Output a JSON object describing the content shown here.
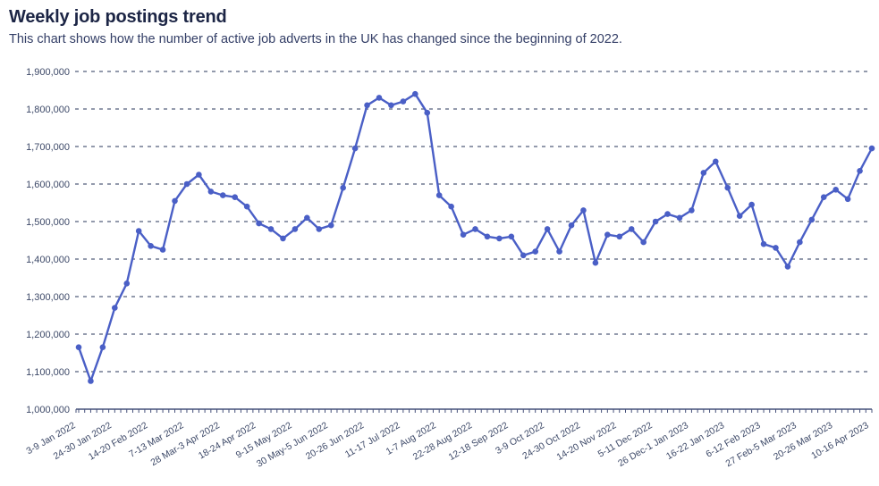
{
  "chart_data": {
    "type": "line",
    "title": "Weekly job postings trend",
    "subtitle": "This chart shows how the number of active job adverts in the UK has changed since the beginning of 2022.",
    "xlabel": "",
    "ylabel": "",
    "ylim": [
      1000000,
      1900000
    ],
    "y_tick_step": 100000,
    "y_tick_labels": [
      "1,000,000",
      "1,100,000",
      "1,200,000",
      "1,300,000",
      "1,400,000",
      "1,500,000",
      "1,600,000",
      "1,700,000",
      "1,800,000",
      "1,900,000"
    ],
    "grid": "horizontal-dashed",
    "legend": "none",
    "x_tick_label_every": 3,
    "x_tick_labels": [
      "3-9 Jan 2022",
      "24-30 Jan 2022",
      "14-20 Feb 2022",
      "7-13 Mar 2022",
      "28 Mar-3 Apr 2022",
      "18-24 Apr 2022",
      "9-15 May 2022",
      "30 May-5 Jun 2022",
      "20-26 Jun 2022",
      "11-17 Jul 2022",
      "1-7 Aug 2022",
      "22-28 Aug 2022",
      "12-18 Sep 2022",
      "3-9 Oct 2022",
      "24-30 Oct 2022",
      "14-20 Nov 2022",
      "5-11 Dec 2022",
      "26 Dec-1 Jan 2023",
      "16-22 Jan 2023",
      "6-12 Feb 2023",
      "27 Feb-5 Mar 2023",
      "20-26 Mar 2023",
      "10-16 Apr 2023"
    ],
    "values": [
      1165000,
      1075000,
      1165000,
      1270000,
      1335000,
      1475000,
      1435000,
      1425000,
      1555000,
      1600000,
      1625000,
      1580000,
      1570000,
      1565000,
      1540000,
      1495000,
      1480000,
      1455000,
      1480000,
      1510000,
      1480000,
      1490000,
      1590000,
      1695000,
      1810000,
      1830000,
      1810000,
      1820000,
      1840000,
      1790000,
      1570000,
      1540000,
      1465000,
      1480000,
      1460000,
      1455000,
      1460000,
      1410000,
      1420000,
      1480000,
      1420000,
      1490000,
      1530000,
      1390000,
      1465000,
      1460000,
      1480000,
      1445000,
      1500000,
      1520000,
      1510000,
      1530000,
      1630000,
      1660000,
      1590000,
      1515000,
      1545000,
      1440000,
      1430000,
      1380000,
      1445000,
      1505000,
      1565000,
      1585000,
      1560000,
      1635000,
      1695000
    ],
    "colors": {
      "line": "#4a5fc6",
      "point": "#4a5fc6",
      "grid": "#848ca1",
      "axis": "#45507a",
      "axis_label": "#3d4968",
      "title": "#1c2545",
      "subtitle": "#333e66"
    }
  }
}
